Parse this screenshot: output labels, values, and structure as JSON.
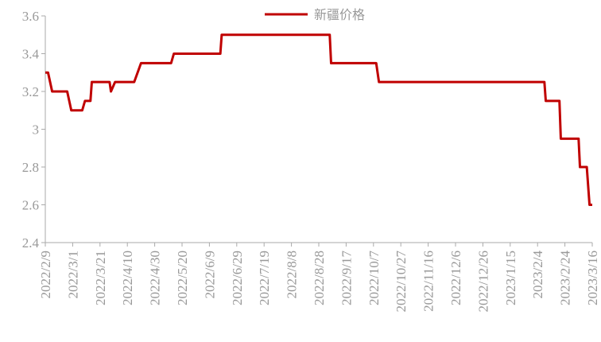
{
  "chart_data": {
    "type": "line",
    "x": [
      "2022/2/9",
      "2022/2/11",
      "2022/2/14",
      "2022/2/25",
      "2022/2/28",
      "2022/3/8",
      "2022/3/10",
      "2022/3/14",
      "2022/3/15",
      "2022/3/28",
      "2022/3/29",
      "2022/4/1",
      "2022/4/15",
      "2022/4/20",
      "2022/5/12",
      "2022/5/14",
      "2022/6/17",
      "2022/6/18",
      "2022/9/5",
      "2022/9/6",
      "2022/10/9",
      "2022/10/11",
      "2023/2/9",
      "2023/2/10",
      "2023/2/20",
      "2023/2/21",
      "2023/3/6",
      "2023/3/7",
      "2023/3/12",
      "2023/3/14",
      "2023/3/16"
    ],
    "series": [
      {
        "name": "新疆价格",
        "color": "#c00000",
        "values": [
          3.3,
          3.3,
          3.2,
          3.2,
          3.1,
          3.1,
          3.15,
          3.15,
          3.25,
          3.25,
          3.2,
          3.25,
          3.25,
          3.35,
          3.35,
          3.4,
          3.4,
          3.5,
          3.5,
          3.35,
          3.35,
          3.25,
          3.25,
          3.15,
          3.15,
          2.95,
          2.95,
          2.8,
          2.8,
          2.6,
          2.6
        ]
      }
    ],
    "xlim": [
      "2022/2/9",
      "2023/3/16"
    ],
    "xticks": [
      "2022/2/9",
      "2022/3/1",
      "2022/3/21",
      "2022/4/10",
      "2022/4/30",
      "2022/5/20",
      "2022/6/9",
      "2022/6/29",
      "2022/7/19",
      "2022/8/8",
      "2022/8/28",
      "2022/9/17",
      "2022/10/7",
      "2022/10/27",
      "2022/11/16",
      "2022/12/6",
      "2022/12/26",
      "2023/1/15",
      "2023/2/4",
      "2023/2/24",
      "2023/3/16"
    ],
    "ylim": [
      2.4,
      3.6
    ],
    "yticks": [
      2.4,
      2.6,
      2.8,
      3,
      3.2,
      3.4,
      3.6
    ],
    "grid": false,
    "legend": "top"
  }
}
